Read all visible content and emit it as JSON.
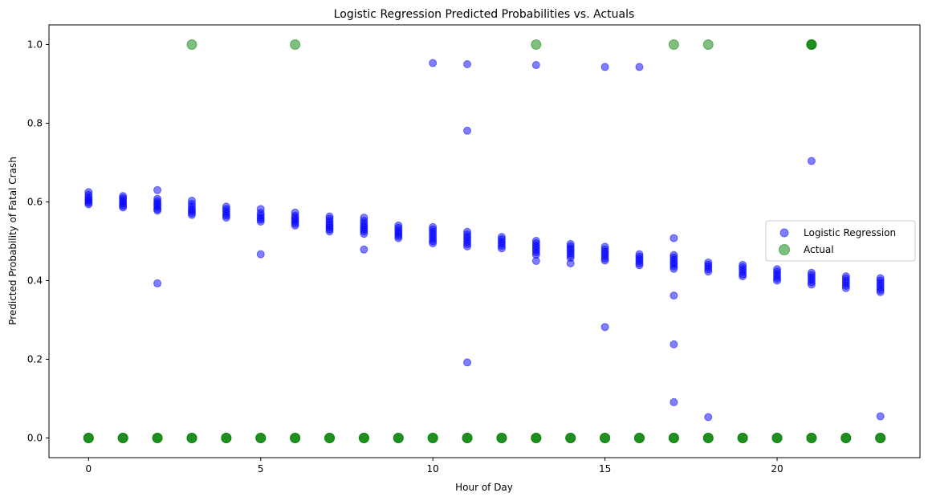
{
  "chart_data": {
    "type": "scatter",
    "title": "Logistic Regression Predicted Probabilities vs. Actuals",
    "xlabel": "Hour of Day",
    "ylabel": "Predicted Probability of Fatal Crash",
    "xlim": [
      -1.15,
      24.15
    ],
    "ylim": [
      -0.05,
      1.05
    ],
    "xticks": [
      0,
      5,
      10,
      15,
      20
    ],
    "yticks": [
      0.0,
      0.2,
      0.4,
      0.6,
      0.8,
      1.0
    ],
    "xtick_labels": [
      "0",
      "5",
      "10",
      "15",
      "20"
    ],
    "ytick_labels": [
      "0.0",
      "0.2",
      "0.4",
      "0.6",
      "0.8",
      "1.0"
    ],
    "grid": false,
    "legend_position": "center-right",
    "series": [
      {
        "name": "Logistic Regression",
        "color": "#0000ff",
        "alpha": 0.5,
        "marker_size": "small",
        "points": [
          [
            0,
            0.625
          ],
          [
            0,
            0.618
          ],
          [
            0,
            0.612
          ],
          [
            0,
            0.607
          ],
          [
            0,
            0.603
          ],
          [
            0,
            0.598
          ],
          [
            0,
            0.594
          ],
          [
            1,
            0.615
          ],
          [
            1,
            0.61
          ],
          [
            1,
            0.605
          ],
          [
            1,
            0.6
          ],
          [
            1,
            0.595
          ],
          [
            1,
            0.59
          ],
          [
            1,
            0.586
          ],
          [
            2,
            0.63
          ],
          [
            2,
            0.608
          ],
          [
            2,
            0.602
          ],
          [
            2,
            0.597
          ],
          [
            2,
            0.592
          ],
          [
            2,
            0.587
          ],
          [
            2,
            0.582
          ],
          [
            2,
            0.578
          ],
          [
            2,
            0.393
          ],
          [
            3,
            0.603
          ],
          [
            3,
            0.595
          ],
          [
            3,
            0.588
          ],
          [
            3,
            0.582
          ],
          [
            3,
            0.577
          ],
          [
            3,
            0.572
          ],
          [
            3,
            0.567
          ],
          [
            4,
            0.588
          ],
          [
            4,
            0.582
          ],
          [
            4,
            0.576
          ],
          [
            4,
            0.57
          ],
          [
            4,
            0.565
          ],
          [
            4,
            0.56
          ],
          [
            5,
            0.582
          ],
          [
            5,
            0.572
          ],
          [
            5,
            0.566
          ],
          [
            5,
            0.56
          ],
          [
            5,
            0.555
          ],
          [
            5,
            0.55
          ],
          [
            5,
            0.467
          ],
          [
            6,
            0.573
          ],
          [
            6,
            0.565
          ],
          [
            6,
            0.56
          ],
          [
            6,
            0.555
          ],
          [
            6,
            0.55
          ],
          [
            6,
            0.545
          ],
          [
            6,
            0.54
          ],
          [
            7,
            0.563
          ],
          [
            7,
            0.557
          ],
          [
            7,
            0.551
          ],
          [
            7,
            0.545
          ],
          [
            7,
            0.54
          ],
          [
            7,
            0.535
          ],
          [
            7,
            0.53
          ],
          [
            7,
            0.525
          ],
          [
            8,
            0.56
          ],
          [
            8,
            0.552
          ],
          [
            8,
            0.546
          ],
          [
            8,
            0.54
          ],
          [
            8,
            0.535
          ],
          [
            8,
            0.53
          ],
          [
            8,
            0.525
          ],
          [
            8,
            0.519
          ],
          [
            8,
            0.479
          ],
          [
            9,
            0.54
          ],
          [
            9,
            0.534
          ],
          [
            9,
            0.528
          ],
          [
            9,
            0.523
          ],
          [
            9,
            0.518
          ],
          [
            9,
            0.513
          ],
          [
            9,
            0.508
          ],
          [
            10,
            0.953
          ],
          [
            10,
            0.536
          ],
          [
            10,
            0.53
          ],
          [
            10,
            0.524
          ],
          [
            10,
            0.518
          ],
          [
            10,
            0.512
          ],
          [
            10,
            0.506
          ],
          [
            10,
            0.5
          ],
          [
            10,
            0.495
          ],
          [
            11,
            0.95
          ],
          [
            11,
            0.781
          ],
          [
            11,
            0.524
          ],
          [
            11,
            0.517
          ],
          [
            11,
            0.511
          ],
          [
            11,
            0.505
          ],
          [
            11,
            0.499
          ],
          [
            11,
            0.493
          ],
          [
            11,
            0.487
          ],
          [
            11,
            0.192
          ],
          [
            12,
            0.511
          ],
          [
            12,
            0.505
          ],
          [
            12,
            0.499
          ],
          [
            12,
            0.494
          ],
          [
            12,
            0.488
          ],
          [
            12,
            0.482
          ],
          [
            13,
            0.948
          ],
          [
            13,
            0.501
          ],
          [
            13,
            0.495
          ],
          [
            13,
            0.489
          ],
          [
            13,
            0.484
          ],
          [
            13,
            0.478
          ],
          [
            13,
            0.472
          ],
          [
            13,
            0.466
          ],
          [
            13,
            0.45
          ],
          [
            14,
            0.493
          ],
          [
            14,
            0.487
          ],
          [
            14,
            0.481
          ],
          [
            14,
            0.476
          ],
          [
            14,
            0.47
          ],
          [
            14,
            0.464
          ],
          [
            14,
            0.458
          ],
          [
            14,
            0.444
          ],
          [
            15,
            0.943
          ],
          [
            15,
            0.486
          ],
          [
            15,
            0.479
          ],
          [
            15,
            0.473
          ],
          [
            15,
            0.468
          ],
          [
            15,
            0.462
          ],
          [
            15,
            0.456
          ],
          [
            15,
            0.451
          ],
          [
            15,
            0.282
          ],
          [
            16,
            0.943
          ],
          [
            16,
            0.467
          ],
          [
            16,
            0.461
          ],
          [
            16,
            0.455
          ],
          [
            16,
            0.45
          ],
          [
            16,
            0.444
          ],
          [
            16,
            0.439
          ],
          [
            17,
            0.508
          ],
          [
            17,
            0.465
          ],
          [
            17,
            0.459
          ],
          [
            17,
            0.453
          ],
          [
            17,
            0.447
          ],
          [
            17,
            0.442
          ],
          [
            17,
            0.436
          ],
          [
            17,
            0.43
          ],
          [
            17,
            0.362
          ],
          [
            17,
            0.238
          ],
          [
            17,
            0.091
          ],
          [
            18,
            0.446
          ],
          [
            18,
            0.44
          ],
          [
            18,
            0.435
          ],
          [
            18,
            0.429
          ],
          [
            18,
            0.423
          ],
          [
            18,
            0.053
          ],
          [
            19,
            0.44
          ],
          [
            19,
            0.434
          ],
          [
            19,
            0.428
          ],
          [
            19,
            0.422
          ],
          [
            19,
            0.416
          ],
          [
            19,
            0.411
          ],
          [
            20,
            0.429
          ],
          [
            20,
            0.423
          ],
          [
            20,
            0.417
          ],
          [
            20,
            0.411
          ],
          [
            20,
            0.405
          ],
          [
            20,
            0.4
          ],
          [
            21,
            0.704
          ],
          [
            21,
            0.42
          ],
          [
            21,
            0.414
          ],
          [
            21,
            0.408
          ],
          [
            21,
            0.402
          ],
          [
            21,
            0.396
          ],
          [
            21,
            0.39
          ],
          [
            22,
            0.411
          ],
          [
            22,
            0.405
          ],
          [
            22,
            0.399
          ],
          [
            22,
            0.393
          ],
          [
            22,
            0.387
          ],
          [
            22,
            0.381
          ],
          [
            23,
            0.406
          ],
          [
            23,
            0.4
          ],
          [
            23,
            0.394
          ],
          [
            23,
            0.388
          ],
          [
            23,
            0.382
          ],
          [
            23,
            0.376
          ],
          [
            23,
            0.371
          ],
          [
            23,
            0.055
          ]
        ]
      },
      {
        "name": "Actual",
        "color": "#008000",
        "alpha": 0.5,
        "marker_size": "large",
        "points": [
          [
            0,
            0
          ],
          [
            0,
            0
          ],
          [
            0,
            0
          ],
          [
            1,
            0
          ],
          [
            1,
            0
          ],
          [
            1,
            0
          ],
          [
            2,
            0
          ],
          [
            2,
            0
          ],
          [
            2,
            0
          ],
          [
            3,
            0
          ],
          [
            3,
            0
          ],
          [
            3,
            0
          ],
          [
            4,
            0
          ],
          [
            4,
            0
          ],
          [
            4,
            0
          ],
          [
            5,
            0
          ],
          [
            5,
            0
          ],
          [
            5,
            0
          ],
          [
            6,
            0
          ],
          [
            6,
            0
          ],
          [
            6,
            0
          ],
          [
            7,
            0
          ],
          [
            7,
            0
          ],
          [
            7,
            0
          ],
          [
            8,
            0
          ],
          [
            8,
            0
          ],
          [
            8,
            0
          ],
          [
            9,
            0
          ],
          [
            9,
            0
          ],
          [
            9,
            0
          ],
          [
            10,
            0
          ],
          [
            10,
            0
          ],
          [
            10,
            0
          ],
          [
            11,
            0
          ],
          [
            11,
            0
          ],
          [
            11,
            0
          ],
          [
            12,
            0
          ],
          [
            12,
            0
          ],
          [
            12,
            0
          ],
          [
            13,
            0
          ],
          [
            13,
            0
          ],
          [
            13,
            0
          ],
          [
            14,
            0
          ],
          [
            14,
            0
          ],
          [
            14,
            0
          ],
          [
            15,
            0
          ],
          [
            15,
            0
          ],
          [
            15,
            0
          ],
          [
            16,
            0
          ],
          [
            16,
            0
          ],
          [
            16,
            0
          ],
          [
            17,
            0
          ],
          [
            17,
            0
          ],
          [
            17,
            0
          ],
          [
            18,
            0
          ],
          [
            18,
            0
          ],
          [
            18,
            0
          ],
          [
            19,
            0
          ],
          [
            19,
            0
          ],
          [
            19,
            0
          ],
          [
            20,
            0
          ],
          [
            20,
            0
          ],
          [
            20,
            0
          ],
          [
            21,
            0
          ],
          [
            21,
            0
          ],
          [
            21,
            0
          ],
          [
            22,
            0
          ],
          [
            22,
            0
          ],
          [
            22,
            0
          ],
          [
            23,
            0
          ],
          [
            23,
            0
          ],
          [
            23,
            0
          ],
          [
            3,
            1
          ],
          [
            6,
            1
          ],
          [
            13,
            1
          ],
          [
            17,
            1
          ],
          [
            18,
            1
          ],
          [
            21,
            1
          ],
          [
            21,
            1
          ],
          [
            21,
            1
          ]
        ]
      }
    ]
  }
}
